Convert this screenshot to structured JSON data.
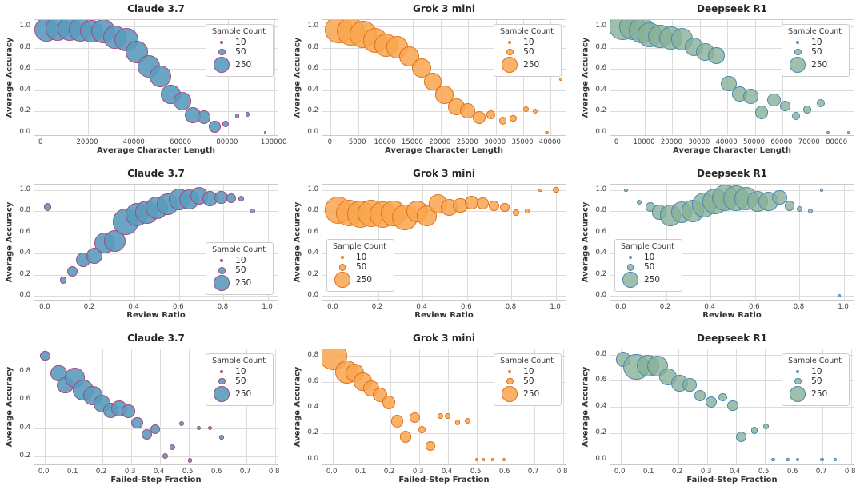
{
  "legend": {
    "title": "Sample Count",
    "entries": [
      {
        "label": "10",
        "n": 10
      },
      {
        "label": "50",
        "n": 50
      },
      {
        "label": "250",
        "n": 250
      }
    ]
  },
  "series_styles": {
    "claude": {
      "fill": "rgba(91,155,190,0.9)",
      "edge": "#a3497f"
    },
    "grok": {
      "fill": "rgba(249,165,78,0.85)",
      "edge": "#e2711d"
    },
    "deepseek": {
      "fill": "rgba(135,176,152,0.8)",
      "edge": "#4d87ad"
    }
  },
  "chart_data": [
    {
      "id": "claude-char-length",
      "type": "scatter",
      "title": "Claude 3.7",
      "series": "claude",
      "xlabel": "Average Character Length",
      "ylabel": "Average Accuracy",
      "xlim": [
        -3000,
        102000
      ],
      "ylim": [
        -0.04,
        1.06
      ],
      "xticks": [
        0,
        20000,
        40000,
        60000,
        80000,
        100000
      ],
      "xtick_decimals": 0,
      "yticks": [
        0.0,
        0.2,
        0.4,
        0.6,
        0.8,
        1.0
      ],
      "ytick_decimals": 1,
      "legend_position": "top-right",
      "point_format": [
        "x",
        "y",
        "sample_count"
      ],
      "points": [
        [
          2000,
          0.97,
          250
        ],
        [
          7000,
          0.98,
          260
        ],
        [
          12000,
          0.98,
          250
        ],
        [
          16800,
          0.97,
          240
        ],
        [
          21500,
          0.955,
          230
        ],
        [
          26500,
          0.955,
          250
        ],
        [
          31500,
          0.9,
          230
        ],
        [
          36500,
          0.875,
          240
        ],
        [
          41000,
          0.76,
          210
        ],
        [
          46000,
          0.625,
          220
        ],
        [
          51000,
          0.53,
          200
        ],
        [
          55500,
          0.36,
          170
        ],
        [
          60500,
          0.295,
          140
        ],
        [
          65000,
          0.16,
          110
        ],
        [
          69800,
          0.145,
          75
        ],
        [
          74500,
          0.055,
          60
        ],
        [
          79000,
          0.08,
          15
        ],
        [
          84000,
          0.155,
          8
        ],
        [
          88500,
          0.17,
          8
        ],
        [
          96000,
          0.0,
          4
        ]
      ]
    },
    {
      "id": "grok-char-length",
      "type": "scatter",
      "title": "Grok 3 mini",
      "series": "grok",
      "xlabel": "Average Character Length",
      "ylabel": "Average Accuracy",
      "xlim": [
        -1500,
        43000
      ],
      "ylim": [
        -0.04,
        1.06
      ],
      "xticks": [
        0,
        5000,
        10000,
        15000,
        20000,
        25000,
        30000,
        35000,
        40000
      ],
      "xtick_decimals": 0,
      "yticks": [
        0.0,
        0.2,
        0.4,
        0.6,
        0.8,
        1.0
      ],
      "ytick_decimals": 1,
      "legend_position": "top-right",
      "point_format": [
        "x",
        "y",
        "sample_count"
      ],
      "points": [
        [
          1500,
          0.97,
          330
        ],
        [
          3600,
          0.95,
          340
        ],
        [
          5900,
          0.925,
          310
        ],
        [
          8100,
          0.87,
          260
        ],
        [
          10100,
          0.82,
          230
        ],
        [
          12100,
          0.805,
          210
        ],
        [
          14300,
          0.72,
          170
        ],
        [
          16500,
          0.61,
          160
        ],
        [
          18600,
          0.48,
          130
        ],
        [
          20700,
          0.355,
          140
        ],
        [
          22800,
          0.245,
          120
        ],
        [
          24900,
          0.205,
          95
        ],
        [
          27000,
          0.14,
          75
        ],
        [
          29100,
          0.17,
          35
        ],
        [
          31300,
          0.11,
          25
        ],
        [
          33200,
          0.135,
          20
        ],
        [
          35500,
          0.22,
          12
        ],
        [
          37200,
          0.2,
          10
        ],
        [
          39300,
          0.0,
          5
        ],
        [
          41800,
          0.5,
          5
        ]
      ]
    },
    {
      "id": "deepseek-char-length",
      "type": "scatter",
      "title": "Deepseek R1",
      "series": "deepseek",
      "xlabel": "Average Character Length",
      "ylabel": "Average Accuracy",
      "xlim": [
        -2500,
        86500
      ],
      "ylim": [
        -0.04,
        1.06
      ],
      "xticks": [
        0,
        10000,
        20000,
        30000,
        40000,
        50000,
        60000,
        70000,
        80000
      ],
      "xtick_decimals": 0,
      "yticks": [
        0.0,
        0.2,
        0.4,
        0.6,
        0.8,
        1.0
      ],
      "ytick_decimals": 1,
      "legend_position": "top-right",
      "point_format": [
        "x",
        "y",
        "sample_count"
      ],
      "points": [
        [
          2000,
          1.0,
          330
        ],
        [
          5500,
          0.995,
          310
        ],
        [
          9000,
          0.96,
          290
        ],
        [
          11800,
          0.92,
          260
        ],
        [
          15500,
          0.905,
          240
        ],
        [
          19500,
          0.89,
          230
        ],
        [
          23500,
          0.88,
          210
        ],
        [
          27800,
          0.805,
          150
        ],
        [
          32000,
          0.76,
          140
        ],
        [
          36000,
          0.725,
          115
        ],
        [
          40500,
          0.46,
          105
        ],
        [
          44500,
          0.365,
          95
        ],
        [
          48500,
          0.34,
          95
        ],
        [
          52500,
          0.19,
          75
        ],
        [
          57000,
          0.305,
          75
        ],
        [
          61000,
          0.25,
          45
        ],
        [
          65000,
          0.155,
          30
        ],
        [
          69000,
          0.215,
          25
        ],
        [
          74000,
          0.275,
          30
        ],
        [
          76500,
          0.0,
          4
        ],
        [
          84000,
          0.0,
          4
        ]
      ]
    },
    {
      "id": "claude-review-ratio",
      "type": "scatter",
      "title": "Claude 3.7",
      "series": "claude",
      "xlabel": "Review Ratio",
      "ylabel": "Average Accuracy",
      "xlim": [
        -0.05,
        1.05
      ],
      "ylim": [
        -0.05,
        1.05
      ],
      "xticks": [
        0.0,
        0.2,
        0.4,
        0.6,
        0.8,
        1.0
      ],
      "xtick_decimals": 1,
      "yticks": [
        0.0,
        0.2,
        0.4,
        0.6,
        0.8,
        1.0
      ],
      "ytick_decimals": 1,
      "legend_position": "bottom-right",
      "point_format": [
        "x",
        "y",
        "sample_count"
      ],
      "points": [
        [
          0.01,
          0.84,
          25
        ],
        [
          0.08,
          0.15,
          20
        ],
        [
          0.12,
          0.235,
          45
        ],
        [
          0.17,
          0.34,
          95
        ],
        [
          0.22,
          0.38,
          115
        ],
        [
          0.265,
          0.5,
          190
        ],
        [
          0.31,
          0.52,
          200
        ],
        [
          0.36,
          0.7,
          290
        ],
        [
          0.41,
          0.77,
          230
        ],
        [
          0.455,
          0.79,
          220
        ],
        [
          0.5,
          0.83,
          210
        ],
        [
          0.55,
          0.865,
          200
        ],
        [
          0.6,
          0.91,
          190
        ],
        [
          0.645,
          0.91,
          170
        ],
        [
          0.69,
          0.945,
          140
        ],
        [
          0.74,
          0.92,
          105
        ],
        [
          0.79,
          0.93,
          75
        ],
        [
          0.835,
          0.92,
          40
        ],
        [
          0.88,
          0.92,
          15
        ],
        [
          0.93,
          0.8,
          12
        ]
      ]
    },
    {
      "id": "grok-review-ratio",
      "type": "scatter",
      "title": "Grok 3 mini",
      "series": "grok",
      "xlabel": "Review Ratio",
      "ylabel": "Average Accuracy",
      "xlim": [
        -0.05,
        1.05
      ],
      "ylim": [
        -0.05,
        1.05
      ],
      "xticks": [
        0.0,
        0.2,
        0.4,
        0.6,
        0.8,
        1.0
      ],
      "xtick_decimals": 1,
      "yticks": [
        0.0,
        0.2,
        0.4,
        0.6,
        0.8,
        1.0
      ],
      "ytick_decimals": 1,
      "legend_position": "left",
      "point_format": [
        "x",
        "y",
        "sample_count"
      ],
      "points": [
        [
          0.02,
          0.81,
          310
        ],
        [
          0.07,
          0.785,
          300
        ],
        [
          0.12,
          0.77,
          310
        ],
        [
          0.17,
          0.78,
          320
        ],
        [
          0.22,
          0.77,
          300
        ],
        [
          0.27,
          0.78,
          280
        ],
        [
          0.32,
          0.74,
          290
        ],
        [
          0.375,
          0.8,
          200
        ],
        [
          0.42,
          0.755,
          180
        ],
        [
          0.47,
          0.87,
          150
        ],
        [
          0.52,
          0.835,
          115
        ],
        [
          0.57,
          0.855,
          95
        ],
        [
          0.62,
          0.88,
          75
        ],
        [
          0.67,
          0.875,
          60
        ],
        [
          0.72,
          0.85,
          45
        ],
        [
          0.77,
          0.835,
          38
        ],
        [
          0.82,
          0.785,
          15
        ],
        [
          0.87,
          0.8,
          10
        ],
        [
          0.93,
          1.0,
          5
        ],
        [
          1.0,
          1.0,
          15
        ]
      ]
    },
    {
      "id": "deepseek-review-ratio",
      "type": "scatter",
      "title": "Deepseek R1",
      "series": "deepseek",
      "xlabel": "Review Ratio",
      "ylabel": "Average Accuracy",
      "xlim": [
        -0.05,
        1.05
      ],
      "ylim": [
        -0.05,
        1.05
      ],
      "xticks": [
        0.0,
        0.2,
        0.4,
        0.6,
        0.8,
        1.0
      ],
      "xtick_decimals": 1,
      "yticks": [
        0.0,
        0.2,
        0.4,
        0.6,
        0.8,
        1.0
      ],
      "ytick_decimals": 1,
      "legend_position": "left",
      "point_format": [
        "x",
        "y",
        "sample_count"
      ],
      "points": [
        [
          0.02,
          1.0,
          5
        ],
        [
          0.08,
          0.885,
          10
        ],
        [
          0.13,
          0.84,
          38
        ],
        [
          0.17,
          0.79,
          95
        ],
        [
          0.22,
          0.76,
          190
        ],
        [
          0.27,
          0.79,
          200
        ],
        [
          0.32,
          0.8,
          210
        ],
        [
          0.37,
          0.86,
          260
        ],
        [
          0.42,
          0.89,
          290
        ],
        [
          0.465,
          0.925,
          310
        ],
        [
          0.515,
          0.92,
          290
        ],
        [
          0.56,
          0.92,
          230
        ],
        [
          0.61,
          0.89,
          190
        ],
        [
          0.66,
          0.89,
          160
        ],
        [
          0.71,
          0.93,
          95
        ],
        [
          0.755,
          0.85,
          45
        ],
        [
          0.8,
          0.82,
          15
        ],
        [
          0.85,
          0.8,
          10
        ],
        [
          0.9,
          1.0,
          4
        ],
        [
          0.98,
          0.0,
          4
        ]
      ]
    },
    {
      "id": "claude-failed-step",
      "type": "scatter",
      "title": "Claude 3.7",
      "series": "claude",
      "xlabel": "Failed-Step Fraction",
      "ylabel": "Average Accuracy",
      "xlim": [
        -0.035,
        0.815
      ],
      "ylim": [
        0.13,
        0.96
      ],
      "xticks": [
        0.0,
        0.1,
        0.2,
        0.3,
        0.4,
        0.5,
        0.6,
        0.7,
        0.8
      ],
      "xtick_decimals": 1,
      "yticks": [
        0.2,
        0.4,
        0.6,
        0.8
      ],
      "ytick_decimals": 1,
      "legend_position": "top-right",
      "point_format": [
        "x",
        "y",
        "sample_count"
      ],
      "points": [
        [
          0.003,
          0.915,
          45
        ],
        [
          0.05,
          0.79,
          115
        ],
        [
          0.072,
          0.705,
          115
        ],
        [
          0.105,
          0.76,
          170
        ],
        [
          0.135,
          0.67,
          180
        ],
        [
          0.168,
          0.63,
          150
        ],
        [
          0.2,
          0.575,
          130
        ],
        [
          0.23,
          0.525,
          95
        ],
        [
          0.26,
          0.54,
          105
        ],
        [
          0.292,
          0.52,
          75
        ],
        [
          0.322,
          0.435,
          55
        ],
        [
          0.355,
          0.355,
          48
        ],
        [
          0.385,
          0.39,
          42
        ],
        [
          0.42,
          0.2,
          15
        ],
        [
          0.445,
          0.265,
          15
        ],
        [
          0.475,
          0.43,
          10
        ],
        [
          0.505,
          0.17,
          8
        ],
        [
          0.535,
          0.4,
          8
        ],
        [
          0.575,
          0.4,
          8
        ],
        [
          0.615,
          0.335,
          8
        ]
      ]
    },
    {
      "id": "grok-failed-step",
      "type": "scatter",
      "title": "Grok 3 mini",
      "series": "grok",
      "xlabel": "Failed-Step Fraction",
      "ylabel": "Average Accuracy",
      "xlim": [
        -0.035,
        0.815
      ],
      "ylim": [
        -0.05,
        0.85
      ],
      "xticks": [
        0.0,
        0.1,
        0.2,
        0.3,
        0.4,
        0.5,
        0.6,
        0.7,
        0.8
      ],
      "xtick_decimals": 1,
      "yticks": [
        0.0,
        0.2,
        0.4,
        0.6,
        0.8
      ],
      "ytick_decimals": 1,
      "legend_position": "top-right",
      "point_format": [
        "x",
        "y",
        "sample_count"
      ],
      "points": [
        [
          0.002,
          0.8,
          340
        ],
        [
          0.05,
          0.675,
          240
        ],
        [
          0.078,
          0.67,
          150
        ],
        [
          0.105,
          0.6,
          140
        ],
        [
          0.135,
          0.55,
          110
        ],
        [
          0.165,
          0.5,
          85
        ],
        [
          0.195,
          0.44,
          75
        ],
        [
          0.225,
          0.295,
          65
        ],
        [
          0.255,
          0.175,
          55
        ],
        [
          0.285,
          0.325,
          45
        ],
        [
          0.31,
          0.23,
          22
        ],
        [
          0.34,
          0.105,
          38
        ],
        [
          0.375,
          0.335,
          15
        ],
        [
          0.4,
          0.335,
          12
        ],
        [
          0.435,
          0.285,
          12
        ],
        [
          0.47,
          0.3,
          15
        ],
        [
          0.5,
          0.0,
          4
        ],
        [
          0.525,
          0.0,
          4
        ],
        [
          0.555,
          0.0,
          4
        ],
        [
          0.595,
          0.0,
          5
        ]
      ]
    },
    {
      "id": "deepseek-failed-step",
      "type": "scatter",
      "title": "Deepseek R1",
      "series": "deepseek",
      "xlabel": "Failed-Step Fraction",
      "ylabel": "Average Accuracy",
      "xlim": [
        -0.035,
        0.815
      ],
      "ylim": [
        -0.05,
        0.84
      ],
      "xticks": [
        0.0,
        0.1,
        0.2,
        0.3,
        0.4,
        0.5,
        0.6,
        0.7,
        0.8
      ],
      "xtick_decimals": 1,
      "yticks": [
        0.0,
        0.2,
        0.4,
        0.6,
        0.8
      ],
      "ytick_decimals": 1,
      "legend_position": "top-right",
      "point_format": [
        "x",
        "y",
        "sample_count"
      ],
      "points": [
        [
          0.01,
          0.765,
          95
        ],
        [
          0.055,
          0.705,
          290
        ],
        [
          0.095,
          0.715,
          210
        ],
        [
          0.13,
          0.71,
          190
        ],
        [
          0.165,
          0.63,
          130
        ],
        [
          0.205,
          0.58,
          115
        ],
        [
          0.24,
          0.57,
          85
        ],
        [
          0.275,
          0.485,
          55
        ],
        [
          0.315,
          0.435,
          55
        ],
        [
          0.355,
          0.475,
          32
        ],
        [
          0.39,
          0.41,
          48
        ],
        [
          0.42,
          0.175,
          48
        ],
        [
          0.465,
          0.22,
          22
        ],
        [
          0.505,
          0.25,
          12
        ],
        [
          0.53,
          0.0,
          5
        ],
        [
          0.58,
          0.0,
          5
        ],
        [
          0.615,
          0.0,
          5
        ],
        [
          0.7,
          0.0,
          5
        ],
        [
          0.745,
          0.0,
          5
        ]
      ]
    }
  ]
}
